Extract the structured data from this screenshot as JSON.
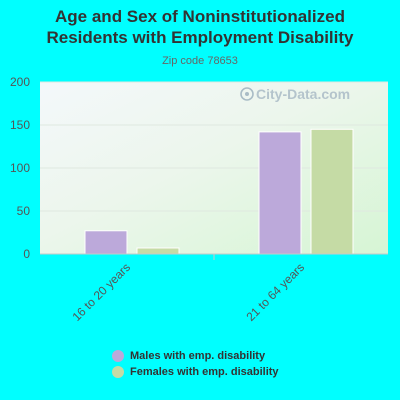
{
  "chart_data": {
    "type": "bar",
    "title": "Age and Sex of Noninstitutionalized Residents with Employment Disability",
    "subtitle": "Zip code 78653",
    "categories": [
      "16 to 20 years",
      "21 to 64 years"
    ],
    "series": [
      {
        "name": "Males with emp. disability",
        "values": [
          27,
          142
        ],
        "color": "#bca9da"
      },
      {
        "name": "Females with emp. disability",
        "values": [
          7,
          145
        ],
        "color": "#c5dba5"
      }
    ],
    "yticks": [
      0,
      50,
      100,
      150,
      200
    ],
    "ylim": [
      0,
      200
    ],
    "grid": true,
    "legend_position": "bottom"
  },
  "watermark": "City-Data.com"
}
